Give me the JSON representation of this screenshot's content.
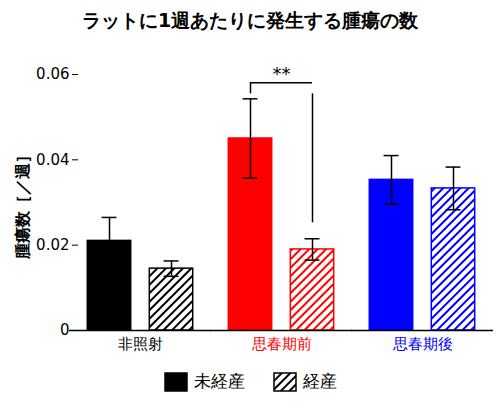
{
  "chart_data": {
    "type": "bar",
    "title": "ラットに1週あたりに発生する腫瘍の数",
    "y_label": "腫瘍数［／週］",
    "categories": [
      "非照射",
      "思春期前",
      "思春期後"
    ],
    "colors": [
      "#000000",
      "#ff0000",
      "#0000ff"
    ],
    "series": [
      {
        "name": "未経産",
        "color": "#000000",
        "line_style": "solid",
        "values": [
          0.021,
          0.045,
          0.0353
        ],
        "errors": [
          0.0055,
          0.0093,
          0.0057
        ]
      },
      {
        "name": "経産",
        "color": "#000000",
        "line_style": "hatched",
        "values": [
          0.0145,
          0.019,
          0.0333
        ],
        "errors": [
          0.0018,
          0.0025,
          0.005
        ]
      }
    ],
    "annotations": [
      {
        "text": "**",
        "category": "思春期前",
        "between": [
          "未経産",
          "経産"
        ]
      }
    ],
    "ylim": [
      0,
      0.06
    ],
    "yticks": [
      0,
      0.02,
      0.04,
      0.06
    ],
    "legend": "bottom"
  }
}
